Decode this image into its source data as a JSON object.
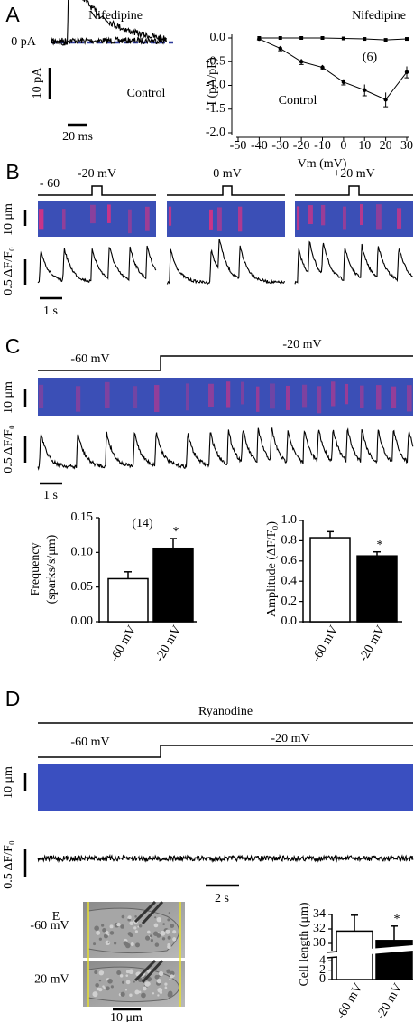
{
  "panel_a": {
    "label": "A",
    "drug": "Nifedipine",
    "zero": "0 pA",
    "current_scale": "10 pA",
    "time_scale": "20 ms",
    "trace": "Control"
  },
  "panel_b": {
    "label": "B",
    "holding": "- 60",
    "steps": [
      "-20 mV",
      "0 mV",
      "+20 mV"
    ],
    "space_scale": "10 μm",
    "signal_scale": "0.5 ΔF/F₀",
    "time_scale": "1 s"
  },
  "panel_c": {
    "label": "C",
    "holding": "-60 mV",
    "step": "-20 mV",
    "space_scale": "10 μm",
    "signal_scale": "0.5 ΔF/F₀",
    "time_scale": "1 s"
  },
  "panel_d": {
    "label": "D",
    "drug": "Ryanodine",
    "holding": "-60 mV",
    "step": "-20 mV",
    "space_scale": "10 μm",
    "signal_scale": "0.5 ΔF/F₀",
    "time_scale": "2 s"
  },
  "panel_e": {
    "label": "E",
    "conditions": [
      "-60 mV",
      "-20 mV"
    ],
    "space_scale": "10 μm"
  },
  "chart_data": [
    {
      "type": "line",
      "xlabel": "Vm (mV)",
      "ylabel": "I (pA/pF)",
      "annotation": "(6)",
      "x": [
        -40,
        -30,
        -20,
        -10,
        0,
        10,
        20,
        30
      ],
      "xlim": [
        -50,
        30
      ],
      "xticks": [
        -50,
        -40,
        -30,
        -20,
        -10,
        0,
        10,
        20,
        30
      ],
      "ylim": [
        -2,
        0
      ],
      "yticks": [
        {
          "value": -2,
          "label": "-2.0"
        },
        -1.5,
        {
          "value": -1,
          "label": "-1.0"
        },
        -0.5,
        {
          "value": 0,
          "label": "0.0"
        }
      ],
      "series": [
        {
          "name": "Nifedipine",
          "color": "#000000",
          "marker": "square",
          "values": [
            0,
            0,
            0,
            0,
            -0.01,
            -0.02,
            -0.04,
            -0.02
          ]
        },
        {
          "name": "Control",
          "color": "#000000",
          "marker": "circle",
          "values": [
            -0.02,
            -0.22,
            -0.5,
            -0.62,
            -0.93,
            -1.1,
            -1.3,
            -0.72
          ],
          "errors": [
            0.02,
            0.05,
            0.06,
            0.05,
            0.06,
            0.12,
            0.15,
            0.12
          ]
        }
      ]
    },
    {
      "type": "bar",
      "ylabel": [
        "Frequency",
        "(sparks/s/μm)"
      ],
      "annotation": "(14)",
      "categories": [
        "-60 mV",
        "-20 mV"
      ],
      "values": [
        0.062,
        0.106
      ],
      "errors": [
        0.01,
        0.014
      ],
      "colors": [
        "#ffffff",
        "#000000"
      ],
      "significance": [
        null,
        "*"
      ],
      "ylim": [
        0,
        0.15
      ],
      "yticks": [
        {
          "value": 0,
          "label": "0.00"
        },
        0.05,
        {
          "value": 0.1,
          "label": "0.10"
        },
        0.15
      ]
    },
    {
      "type": "bar",
      "ylabel": [
        "Amplitude (ΔF/F₀)"
      ],
      "categories": [
        "-60 mV",
        "-20 mV"
      ],
      "values": [
        0.83,
        0.65
      ],
      "errors": [
        0.06,
        0.04
      ],
      "colors": [
        "#ffffff",
        "#000000"
      ],
      "significance": [
        null,
        "*"
      ],
      "ylim": [
        0,
        1
      ],
      "yticks": [
        {
          "value": 0,
          "label": "0.0"
        },
        0.2,
        0.4,
        0.6,
        0.8,
        {
          "value": 1,
          "label": "1.0"
        }
      ]
    },
    {
      "type": "bar",
      "ylabel": [
        "Cell length (μm)"
      ],
      "categories": [
        "-60 mV",
        "-20 mV"
      ],
      "values": [
        31.7,
        30.4
      ],
      "errors": [
        2.2,
        2.0
      ],
      "colors": [
        "#ffffff",
        "#000000"
      ],
      "significance": [
        null,
        "*"
      ],
      "ylim": [
        0,
        34
      ],
      "axis_break": [
        5,
        29
      ],
      "yticks": [
        0,
        2,
        4,
        30,
        32,
        34
      ]
    }
  ]
}
